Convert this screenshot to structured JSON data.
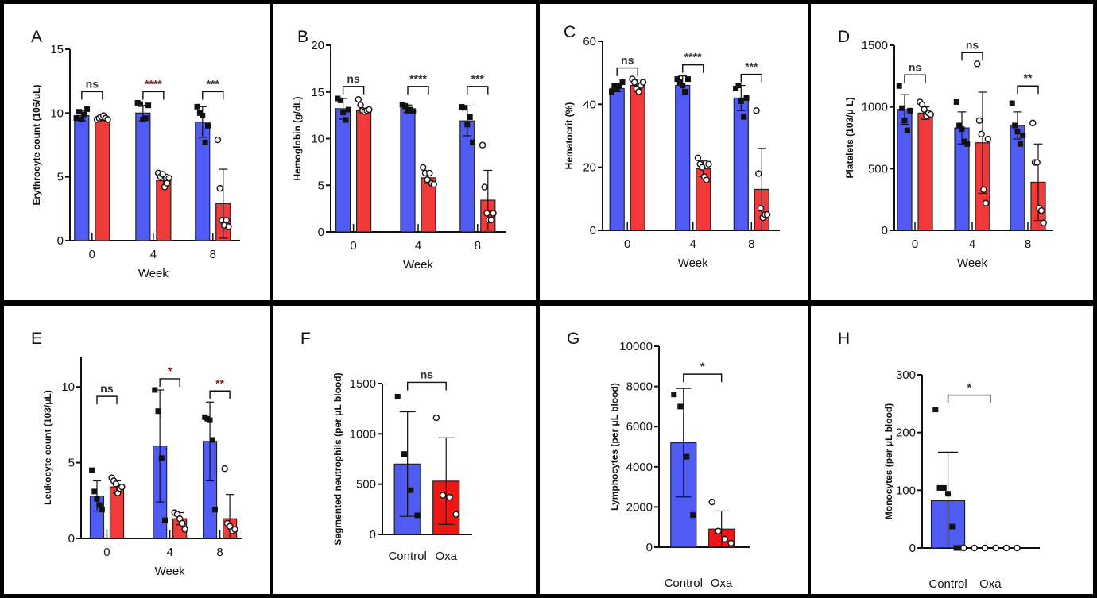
{
  "colors": {
    "control": "#4f5bf2",
    "oxa": "#f23a3a",
    "oxa_bright": "#ee1515",
    "outline": "#222222",
    "sig_default": "#333333",
    "sig_dark_red": "#7a1c1c"
  },
  "chart_data": [
    {
      "panel": "A",
      "type": "bar",
      "ylabel": "Erythrocyte count (106/uL)",
      "xlabel": "Week",
      "categories": [
        "0",
        "4",
        "8"
      ],
      "ylim": [
        0,
        15
      ],
      "yticks": [
        0,
        5,
        10,
        15
      ],
      "series": [
        {
          "group": "control",
          "values": [
            9.8,
            10.0,
            9.3
          ],
          "sd": [
            0.4,
            0.6,
            1.2
          ],
          "points": [
            [
              9.6,
              10.1,
              9.5,
              9.9,
              10.3
            ],
            [
              10.8,
              10.7,
              9.5,
              9.6,
              10.6
            ],
            [
              10.5,
              10.0,
              9.8,
              7.7,
              9.0
            ]
          ]
        },
        {
          "group": "oxa",
          "values": [
            9.6,
            4.7,
            2.9
          ],
          "sd": [
            0.2,
            0.5,
            2.7
          ],
          "points": [
            [
              9.5,
              9.6,
              9.7,
              9.8,
              9.6,
              9.5
            ],
            [
              5.3,
              5.0,
              5.2,
              4.2,
              4.5,
              4.9
            ],
            [
              7.9,
              4.1,
              1.6,
              1.2,
              1.6,
              1.1
            ]
          ]
        }
      ],
      "significance": [
        {
          "label": "ns",
          "color": "sig_default"
        },
        {
          "label": "****",
          "color": "sig_dark_red"
        },
        {
          "label": "***",
          "color": "sig_default"
        }
      ]
    },
    {
      "panel": "B",
      "type": "bar",
      "ylabel": "Hemoglobin (g/dL)",
      "xlabel": "Week",
      "categories": [
        "0",
        "4",
        "8"
      ],
      "ylim": [
        0,
        20
      ],
      "yticks": [
        0,
        5,
        10,
        15,
        20
      ],
      "series": [
        {
          "group": "control",
          "values": [
            13.2,
            13.2,
            11.9
          ],
          "sd": [
            1.1,
            0.4,
            1.6
          ],
          "points": [
            [
              14.3,
              14.1,
              12.8,
              12.0,
              13.1
            ],
            [
              13.6,
              13.5,
              13.0,
              13.1,
              12.9
            ],
            [
              13.4,
              13.3,
              11.5,
              12.3,
              9.6
            ]
          ]
        },
        {
          "group": "oxa",
          "values": [
            13.0,
            5.8,
            3.4
          ],
          "sd": [
            0.2,
            0.6,
            3.2
          ],
          "points": [
            [
              14.2,
              13.6,
              13.0,
              12.9,
              13.0,
              13.1
            ],
            [
              6.9,
              6.3,
              5.6,
              6.3,
              5.2,
              5.1
            ],
            [
              9.3,
              4.8,
              2.0,
              1.3,
              1.3,
              2.0
            ]
          ]
        }
      ],
      "significance": [
        {
          "label": "ns",
          "color": "sig_default"
        },
        {
          "label": "****",
          "color": "sig_default"
        },
        {
          "label": "***",
          "color": "sig_default"
        }
      ]
    },
    {
      "panel": "C",
      "type": "bar",
      "ylabel": "Hematocrit (%)",
      "xlabel": "Week",
      "categories": [
        "0",
        "4",
        "8"
      ],
      "ylim": [
        0,
        60
      ],
      "yticks": [
        0,
        20,
        40,
        60
      ],
      "series": [
        {
          "group": "control",
          "values": [
            45,
            46,
            42
          ],
          "sd": [
            1,
            3,
            4
          ],
          "points": [
            [
              44,
              46,
              45,
              46,
              47
            ],
            [
              48,
              47,
              46,
              44,
              48
            ],
            [
              45,
              46,
              41,
              36,
              42
            ]
          ]
        },
        {
          "group": "oxa",
          "values": [
            46,
            19.5,
            13
          ],
          "sd": [
            2,
            2.5,
            13
          ],
          "points": [
            [
              48,
              47,
              45,
              44,
              46,
              47
            ],
            [
              23,
              21,
              20,
              17,
              16,
              21
            ],
            [
              38,
              18,
              7,
              4,
              5,
              5
            ]
          ]
        }
      ],
      "significance": [
        {
          "label": "ns",
          "color": "sig_default"
        },
        {
          "label": "****",
          "color": "sig_default"
        },
        {
          "label": "***",
          "color": "sig_default"
        }
      ]
    },
    {
      "panel": "D",
      "type": "bar",
      "ylabel": "Platelets (103/μ L)",
      "xlabel": "Week",
      "categories": [
        "0",
        "4",
        "8"
      ],
      "ylim": [
        0,
        1500
      ],
      "yticks": [
        0,
        500,
        1000,
        1500
      ],
      "series": [
        {
          "group": "control",
          "values": [
            980,
            830,
            850
          ],
          "sd": [
            120,
            130,
            110
          ],
          "points": [
            [
              1170,
              990,
              890,
              810,
              970
            ],
            [
              1040,
              850,
              820,
              720,
              700
            ],
            [
              1030,
              850,
              800,
              700,
              770
            ]
          ]
        },
        {
          "group": "oxa",
          "values": [
            950,
            710,
            390
          ],
          "sd": [
            50,
            410,
            310
          ],
          "points": [
            [
              1040,
              1020,
              980,
              930,
              950,
              940
            ],
            [
              1350,
              890,
              780,
              330,
              220,
              740
            ],
            [
              870,
              550,
              550,
              180,
              160,
              60
            ]
          ]
        }
      ],
      "significance": [
        {
          "label": "ns",
          "color": "sig_default"
        },
        {
          "label": "ns",
          "color": "sig_default"
        },
        {
          "label": "**",
          "color": "sig_default"
        }
      ]
    },
    {
      "panel": "E",
      "type": "bar",
      "ylabel": "Leukocyte count (103/μL)",
      "xlabel": "Week",
      "categories": [
        "0",
        "4",
        "8"
      ],
      "ylim": [
        0,
        12
      ],
      "yticks": [
        0,
        5,
        10
      ],
      "series": [
        {
          "group": "control",
          "values": [
            2.8,
            6.1,
            6.4
          ],
          "sd": [
            1.0,
            3.7,
            2.6
          ],
          "points": [
            [
              4.5,
              3.1,
              2.6,
              2.2,
              1.9
            ],
            [
              9.8,
              8.4,
              5.3,
              1.2
            ],
            [
              8.0,
              7.9,
              7.8,
              6.5,
              1.9
            ]
          ]
        },
        {
          "group": "oxa",
          "values": [
            3.4,
            1.3,
            1.3
          ],
          "sd": [
            0.4,
            0.4,
            1.6
          ],
          "points": [
            [
              4.0,
              3.8,
              3.6,
              3.0,
              3.3,
              3.4
            ],
            [
              1.7,
              1.6,
              1.3,
              1.0,
              0.6
            ],
            [
              4.6,
              1.0,
              0.8,
              0.5,
              0.6
            ]
          ]
        }
      ],
      "significance": [
        {
          "label": "ns",
          "color": "sig_default"
        },
        {
          "label": "*",
          "color": "sig_dark_red"
        },
        {
          "label": "**",
          "color": "sig_dark_red"
        }
      ]
    },
    {
      "panel": "F",
      "type": "bar",
      "ylabel": "Segmented neutrophils (per μL blood)",
      "xlabel": "",
      "categories": [
        "Control",
        "Oxa"
      ],
      "ylim": [
        0,
        1500
      ],
      "yticks": [
        0,
        500,
        1000,
        1500
      ],
      "bars": [
        {
          "group": "control",
          "value": 700,
          "sd": 520,
          "points": [
            1370,
            800,
            440,
            190
          ]
        },
        {
          "group": "oxa",
          "value": 530,
          "sd": 430,
          "points": [
            1160,
            390,
            370,
            200
          ]
        }
      ],
      "significance": [
        {
          "label": "ns",
          "color": "sig_default"
        }
      ]
    },
    {
      "panel": "G",
      "type": "bar",
      "ylabel": "Lymphocytes (per μL blood)",
      "xlabel": "",
      "categories": [
        "Control",
        "Oxa"
      ],
      "ylim": [
        0,
        10000
      ],
      "yticks": [
        0,
        2000,
        4000,
        6000,
        8000,
        10000
      ],
      "bars": [
        {
          "group": "control",
          "value": 5200,
          "sd": 2700,
          "points": [
            7600,
            7000,
            4500,
            1600
          ]
        },
        {
          "group": "oxa",
          "value": 900,
          "sd": 900,
          "points": [
            2250,
            800,
            400,
            200
          ]
        }
      ],
      "significance": [
        {
          "label": "*",
          "color": "sig_default"
        }
      ]
    },
    {
      "panel": "H",
      "type": "bar",
      "ylabel": "Monocytes (per μL blood)",
      "xlabel": "",
      "categories": [
        "Control",
        "Oxa"
      ],
      "ylim": [
        0,
        300
      ],
      "yticks": [
        0,
        100,
        200,
        300
      ],
      "bars": [
        {
          "group": "control",
          "value": 82,
          "sd": 84,
          "points": [
            240,
            104,
            104,
            94,
            37,
            0,
            0
          ]
        },
        {
          "group": "oxa",
          "value": 0,
          "sd": 0,
          "points": [
            0,
            0,
            0,
            0,
            0,
            0
          ]
        }
      ],
      "significance": [
        {
          "label": "*",
          "color": "sig_default"
        }
      ]
    }
  ]
}
